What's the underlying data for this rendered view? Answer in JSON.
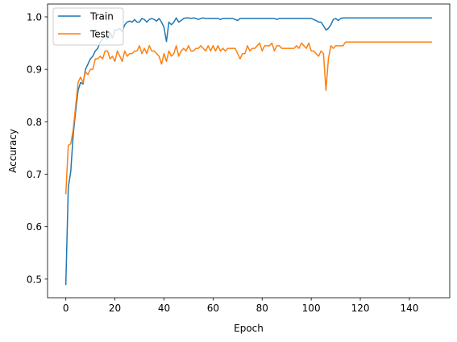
{
  "chart_data": {
    "type": "line",
    "xlabel": "Epoch",
    "ylabel": "Accuracy",
    "xlim": [
      -7.45,
      156.45
    ],
    "ylim": [
      0.4645,
      1.0245
    ],
    "xticks": [
      0,
      20,
      40,
      60,
      80,
      100,
      120,
      140
    ],
    "yticks": [
      0.5,
      0.6,
      0.7,
      0.8,
      0.9,
      1.0
    ],
    "ytick_labels": [
      "0.5",
      "0.6",
      "0.7",
      "0.8",
      "0.9",
      "1.0"
    ],
    "grid": false,
    "legend_position": "upper-left",
    "series": [
      {
        "name": "Train",
        "color": "#1f77b4",
        "values": [
          0.49,
          0.675,
          0.705,
          0.775,
          0.82,
          0.86,
          0.875,
          0.872,
          0.9,
          0.91,
          0.92,
          0.925,
          0.935,
          0.94,
          0.952,
          0.958,
          0.962,
          0.958,
          0.97,
          0.96,
          0.975,
          0.975,
          0.978,
          0.972,
          0.985,
          0.99,
          0.992,
          0.99,
          0.995,
          0.99,
          0.99,
          0.997,
          0.995,
          0.99,
          0.995,
          0.997,
          0.995,
          0.992,
          0.997,
          0.99,
          0.98,
          0.953,
          0.99,
          0.985,
          0.99,
          0.998,
          0.99,
          0.993,
          0.997,
          0.998,
          0.998,
          0.997,
          0.998,
          0.997,
          0.995,
          0.997,
          0.998,
          0.997,
          0.997,
          0.997,
          0.997,
          0.997,
          0.997,
          0.995,
          0.997,
          0.997,
          0.997,
          0.997,
          0.997,
          0.995,
          0.993,
          0.997,
          0.997,
          0.997,
          0.997,
          0.997,
          0.997,
          0.997,
          0.997,
          0.997,
          0.997,
          0.997,
          0.997,
          0.997,
          0.997,
          0.997,
          0.995,
          0.997,
          0.997,
          0.997,
          0.997,
          0.997,
          0.997,
          0.997,
          0.997,
          0.997,
          0.997,
          0.997,
          0.997,
          0.997,
          0.997,
          0.995,
          0.993,
          0.99,
          0.99,
          0.983,
          0.975,
          0.978,
          0.985,
          0.995,
          0.997,
          0.993,
          0.997,
          0.998,
          0.998,
          0.998,
          0.998,
          0.998,
          0.998,
          0.998,
          0.998,
          0.998,
          0.998,
          0.998,
          0.998,
          0.998,
          0.998,
          0.998,
          0.998,
          0.998,
          0.998,
          0.998,
          0.998,
          0.998,
          0.998,
          0.998,
          0.998,
          0.998,
          0.998,
          0.998,
          0.998,
          0.998,
          0.998,
          0.998,
          0.998,
          0.998,
          0.998,
          0.998,
          0.998,
          0.998
        ]
      },
      {
        "name": "Test",
        "color": "#ff7f0e",
        "values": [
          0.663,
          0.755,
          0.758,
          0.785,
          0.83,
          0.875,
          0.885,
          0.875,
          0.895,
          0.89,
          0.9,
          0.9,
          0.92,
          0.92,
          0.925,
          0.92,
          0.935,
          0.935,
          0.92,
          0.925,
          0.915,
          0.935,
          0.925,
          0.915,
          0.935,
          0.925,
          0.93,
          0.93,
          0.935,
          0.935,
          0.945,
          0.93,
          0.94,
          0.93,
          0.945,
          0.935,
          0.935,
          0.93,
          0.925,
          0.91,
          0.93,
          0.915,
          0.935,
          0.925,
          0.93,
          0.945,
          0.925,
          0.935,
          0.94,
          0.935,
          0.945,
          0.935,
          0.935,
          0.94,
          0.94,
          0.945,
          0.94,
          0.935,
          0.945,
          0.935,
          0.945,
          0.935,
          0.945,
          0.935,
          0.94,
          0.935,
          0.94,
          0.94,
          0.94,
          0.94,
          0.93,
          0.92,
          0.93,
          0.93,
          0.945,
          0.935,
          0.94,
          0.94,
          0.945,
          0.95,
          0.935,
          0.945,
          0.945,
          0.945,
          0.95,
          0.935,
          0.945,
          0.945,
          0.94,
          0.94,
          0.94,
          0.94,
          0.94,
          0.94,
          0.945,
          0.94,
          0.95,
          0.945,
          0.94,
          0.95,
          0.935,
          0.935,
          0.93,
          0.925,
          0.935,
          0.93,
          0.86,
          0.92,
          0.945,
          0.94,
          0.945,
          0.945,
          0.945,
          0.945,
          0.952,
          0.952,
          0.952,
          0.952,
          0.952,
          0.952,
          0.952,
          0.952,
          0.952,
          0.952,
          0.952,
          0.952,
          0.952,
          0.952,
          0.952,
          0.952,
          0.952,
          0.952,
          0.952,
          0.952,
          0.952,
          0.952,
          0.952,
          0.952,
          0.952,
          0.952,
          0.952,
          0.952,
          0.952,
          0.952,
          0.952,
          0.952,
          0.952,
          0.952,
          0.952,
          0.952
        ]
      }
    ]
  }
}
